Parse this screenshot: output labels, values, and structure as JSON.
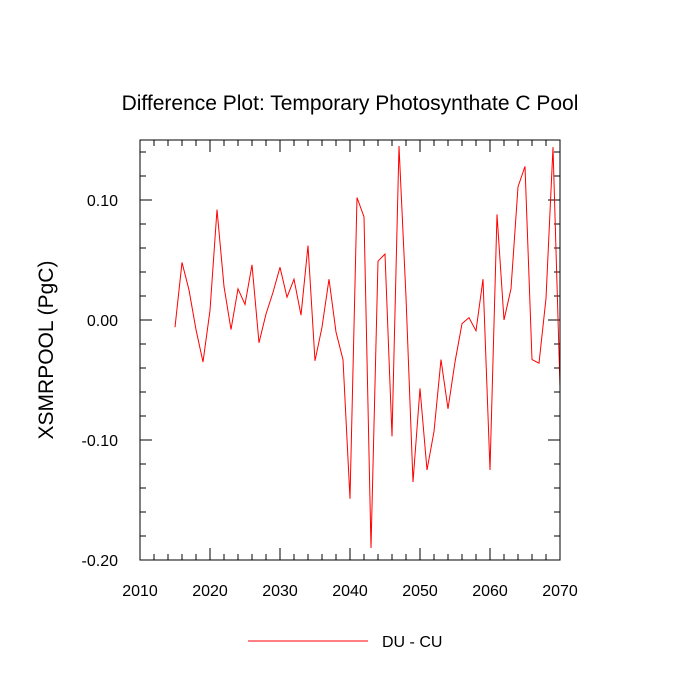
{
  "chart_data": {
    "type": "line",
    "title": "Difference Plot: Temporary Photosynthate C Pool",
    "xlabel": "",
    "ylabel": "XSMRPOOL  (PgC)",
    "xlim": [
      2010,
      2070
    ],
    "ylim": [
      -0.2,
      0.15
    ],
    "x_ticks": [
      2010,
      2020,
      2030,
      2040,
      2050,
      2060,
      2070
    ],
    "x_tick_labels": [
      "2010",
      "2020",
      "2030",
      "2040",
      "2050",
      "2060",
      "2070"
    ],
    "y_ticks": [
      -0.2,
      -0.1,
      0.0,
      0.1
    ],
    "y_tick_labels": [
      "-0.20",
      "-0.10",
      "0.00",
      "0.10"
    ],
    "x_minor_step": 2,
    "y_minor_step": 0.02,
    "grid": false,
    "legend_position": "bottom-center",
    "series": [
      {
        "name": "DU - CU",
        "color": "#ff0000",
        "x": [
          2015,
          2016,
          2017,
          2018,
          2019,
          2020,
          2021,
          2022,
          2023,
          2024,
          2025,
          2026,
          2027,
          2028,
          2029,
          2030,
          2031,
          2032,
          2033,
          2034,
          2035,
          2036,
          2037,
          2038,
          2039,
          2040,
          2041,
          2042,
          2043,
          2044,
          2045,
          2046,
          2047,
          2048,
          2049,
          2050,
          2051,
          2052,
          2053,
          2054,
          2055,
          2056,
          2057,
          2058,
          2059,
          2060,
          2061,
          2062,
          2063,
          2064,
          2065,
          2066,
          2067,
          2068,
          2069,
          2070
        ],
        "values": [
          -0.006,
          0.048,
          0.025,
          -0.008,
          -0.035,
          0.008,
          0.092,
          0.028,
          -0.008,
          0.026,
          0.013,
          0.046,
          -0.019,
          0.005,
          0.023,
          0.044,
          0.019,
          0.034,
          0.004,
          0.062,
          -0.034,
          -0.006,
          0.034,
          -0.01,
          -0.033,
          -0.149,
          0.102,
          0.086,
          -0.19,
          0.049,
          0.055,
          -0.097,
          0.145,
          0.019,
          -0.135,
          -0.057,
          -0.125,
          -0.093,
          -0.033,
          -0.074,
          -0.035,
          -0.003,
          0.002,
          -0.009,
          0.034,
          -0.125,
          0.088,
          0.0,
          0.026,
          0.111,
          0.128,
          -0.033,
          -0.036,
          0.018,
          0.144,
          -0.056
        ]
      }
    ]
  }
}
